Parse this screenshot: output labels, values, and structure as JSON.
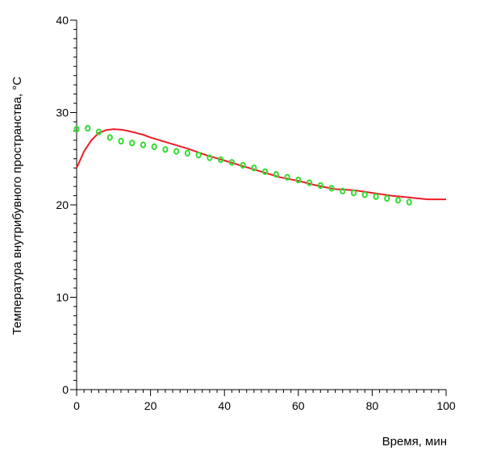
{
  "chart_data": {
    "type": "line",
    "title": "",
    "xlabel": "Время, мин",
    "ylabel": "Температура внутрибувного пространства, °С",
    "xlim": [
      0,
      100
    ],
    "ylim": [
      0,
      40
    ],
    "x_ticks": [
      0,
      20,
      40,
      60,
      80,
      100
    ],
    "y_ticks": [
      0,
      10,
      20,
      30,
      40
    ],
    "x_minor_step": 2,
    "y_minor_step": 1,
    "grid": false,
    "legend": "none",
    "series": [
      {
        "style": "line",
        "color": "#ee1c25",
        "x": [
          0,
          2,
          4,
          6,
          8,
          10,
          12,
          14,
          16,
          18,
          20,
          25,
          30,
          35,
          40,
          45,
          50,
          55,
          60,
          65,
          70,
          75,
          80,
          85,
          90,
          95,
          100
        ],
        "y": [
          24.0,
          25.8,
          27.0,
          27.8,
          28.1,
          28.2,
          28.15,
          28.0,
          27.8,
          27.6,
          27.3,
          26.7,
          26.1,
          25.4,
          24.8,
          24.2,
          23.6,
          23.0,
          22.6,
          22.1,
          21.7,
          21.6,
          21.3,
          21.0,
          20.8,
          20.6,
          20.6
        ]
      },
      {
        "style": "markers",
        "color": "#33dd33",
        "x": [
          0,
          3,
          6,
          9,
          12,
          15,
          18,
          21,
          24,
          27,
          30,
          33,
          36,
          39,
          42,
          45,
          48,
          51,
          54,
          57,
          60,
          63,
          66,
          69,
          72,
          75,
          78,
          81,
          84,
          87,
          90
        ],
        "y": [
          28.2,
          28.3,
          27.9,
          27.3,
          26.9,
          26.7,
          26.5,
          26.3,
          26.0,
          25.8,
          25.6,
          25.4,
          25.1,
          24.9,
          24.6,
          24.3,
          24.0,
          23.6,
          23.3,
          23.0,
          22.7,
          22.4,
          22.1,
          21.8,
          21.5,
          21.3,
          21.1,
          20.9,
          20.7,
          20.5,
          20.3
        ]
      }
    ]
  }
}
